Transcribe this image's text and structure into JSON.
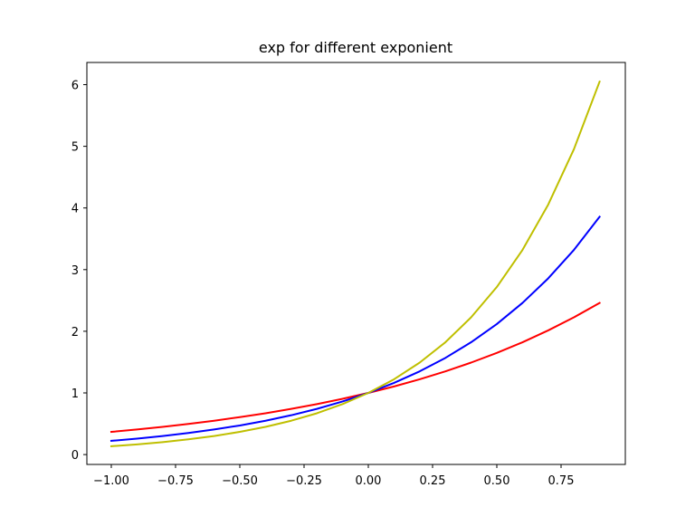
{
  "chart_data": {
    "type": "line",
    "title": "exp for different exponient",
    "xlabel": "",
    "ylabel": "",
    "xlim": [
      -1.095,
      1.0
    ],
    "ylim": [
      -0.16,
      6.36
    ],
    "grid": false,
    "x": [
      -1.0,
      -0.9,
      -0.8,
      -0.7,
      -0.6,
      -0.5,
      -0.4,
      -0.3,
      -0.2,
      -0.1,
      0.0,
      0.1,
      0.2,
      0.3,
      0.4,
      0.5,
      0.6,
      0.7,
      0.8,
      0.9
    ],
    "xticks": [
      -1.0,
      -0.75,
      -0.5,
      -0.25,
      0.0,
      0.25,
      0.5,
      0.75
    ],
    "xtick_labels": [
      "−1.00",
      "−0.75",
      "−0.50",
      "−0.25",
      "0.00",
      "0.25",
      "0.50",
      "0.75"
    ],
    "yticks": [
      0,
      1,
      2,
      3,
      4,
      5,
      6
    ],
    "ytick_labels": [
      "0",
      "1",
      "2",
      "3",
      "4",
      "5",
      "6"
    ],
    "series": [
      {
        "color": "#ff0000",
        "values": [
          0.368,
          0.407,
          0.449,
          0.497,
          0.549,
          0.607,
          0.67,
          0.741,
          0.819,
          0.905,
          1.0,
          1.105,
          1.221,
          1.35,
          1.492,
          1.649,
          1.822,
          2.014,
          2.226,
          2.46
        ]
      },
      {
        "color": "#0000ff",
        "values": [
          0.223,
          0.259,
          0.301,
          0.35,
          0.407,
          0.472,
          0.549,
          0.638,
          0.741,
          0.861,
          1.0,
          1.162,
          1.35,
          1.568,
          1.822,
          2.117,
          2.46,
          2.858,
          3.32,
          3.857
        ]
      },
      {
        "color": "#bfbf00",
        "values": [
          0.135,
          0.165,
          0.202,
          0.247,
          0.301,
          0.368,
          0.449,
          0.549,
          0.67,
          0.819,
          1.0,
          1.221,
          1.492,
          1.822,
          2.226,
          2.718,
          3.32,
          4.055,
          4.953,
          6.05
        ]
      }
    ]
  }
}
